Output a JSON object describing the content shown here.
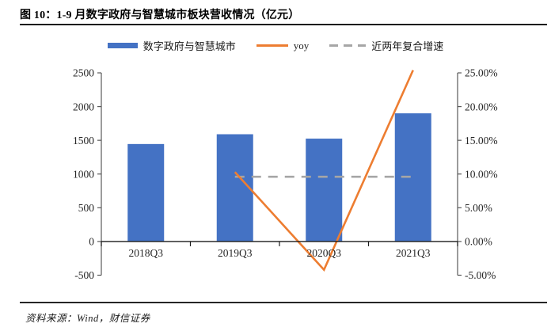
{
  "title": "图 10：1-9 月数字政府与智慧城市板块营收情况（亿元）",
  "source": "资料来源：Wind，财信证券",
  "colors": {
    "bar": "#4472C4",
    "yoy_line": "#ED7D31",
    "cagr_line": "#A6A6A6",
    "axis_line": "#595959",
    "zero_line": "#1a1a1a",
    "text": "#262626"
  },
  "legend": [
    {
      "label": "数字政府与智慧城市",
      "marker": "bar-swatch"
    },
    {
      "label": "yoy",
      "marker": "solid-line-swatch"
    },
    {
      "label": "近两年复合增速",
      "marker": "dashed-line-swatch"
    }
  ],
  "chart_data": {
    "type": "bar",
    "subtype": "bar-line-combo",
    "title": "1-9 月数字政府与智慧城市板块营收情况（亿元）",
    "categories": [
      "2018Q3",
      "2019Q3",
      "2020Q3",
      "2021Q3"
    ],
    "series": [
      {
        "name": "数字政府与智慧城市",
        "type": "bar",
        "axis": "left",
        "values": [
          1445,
          1590,
          1525,
          1900
        ]
      },
      {
        "name": "yoy",
        "type": "line",
        "axis": "right",
        "values": [
          null,
          10.3,
          -4.2,
          25.4
        ]
      },
      {
        "name": "近两年复合增速",
        "type": "dashed-line",
        "axis": "right",
        "values": [
          null,
          9.6,
          9.6,
          9.6
        ]
      }
    ],
    "left_axis": {
      "min": -500,
      "max": 2500,
      "ticks": [
        "2500",
        "2000",
        "1500",
        "1000",
        "500",
        "0",
        "-500"
      ]
    },
    "right_axis": {
      "min": -5,
      "max": 25,
      "ticks": [
        "25.00%",
        "20.00%",
        "15.00%",
        "10.00%",
        "5.00%",
        "0.00%",
        "-5.00%"
      ]
    },
    "grid": false,
    "legend_position": "top"
  }
}
